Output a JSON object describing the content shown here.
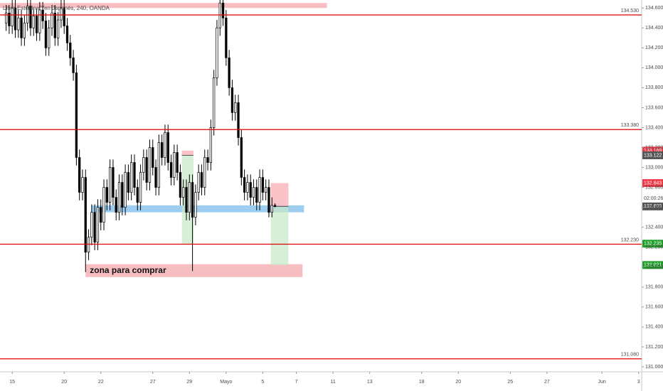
{
  "chart_data": {
    "type": "candlestick",
    "title": "Libra Esterlina/Yen Japonés, 240, OANDA",
    "countdown": "02:00:26",
    "up_color": "#ffffff",
    "down_color": "#000000",
    "x": [
      0,
      1,
      2,
      3,
      4,
      5,
      6,
      7,
      8,
      9,
      10,
      11,
      12,
      13,
      14,
      15,
      16,
      17,
      18,
      19,
      20,
      21,
      22,
      23,
      24,
      25,
      26,
      27,
      28,
      29,
      30,
      31,
      32,
      33,
      34,
      35,
      36,
      37,
      38,
      39,
      40,
      41,
      42,
      43,
      44,
      45,
      46,
      47,
      48,
      49,
      50,
      51,
      52,
      53,
      54,
      55,
      56,
      57,
      58,
      59,
      60,
      61,
      62,
      63,
      64,
      65,
      66,
      67,
      68,
      69,
      70,
      71,
      72,
      73,
      74,
      75,
      76,
      77,
      78,
      79,
      80,
      81,
      82,
      83,
      84,
      85,
      86,
      87,
      88
    ],
    "open": [
      134.45,
      134.55,
      134.42,
      134.6,
      134.38,
      134.5,
      134.3,
      134.45,
      134.62,
      134.4,
      134.52,
      134.35,
      134.58,
      134.47,
      134.2,
      134.4,
      134.55,
      134.3,
      134.48,
      134.6,
      134.42,
      134.25,
      134.1,
      133.95,
      133.1,
      132.75,
      132.9,
      132.15,
      132.3,
      132.55,
      132.25,
      132.6,
      132.45,
      132.8,
      132.65,
      133,
      132.7,
      132.55,
      132.85,
      132.6,
      132.95,
      132.75,
      133.05,
      132.8,
      132.65,
      132.95,
      133.1,
      132.85,
      133.2,
      133,
      132.8,
      133.25,
      133.1,
      133.35,
      133.05,
      132.9,
      133.15,
      132.95,
      132.7,
      132.8,
      132.55,
      132.85,
      132.5,
      132.75,
      132.95,
      132.8,
      133.1,
      133.05,
      133.4,
      133.9,
      134.4,
      134.65,
      134.5,
      134.1,
      133.8,
      133.55,
      133.65,
      133.3,
      132.9,
      132.75,
      132.85,
      132.7,
      132.8,
      132.65,
      132.9,
      132.75,
      132.8,
      132.55,
      132.62
    ],
    "high": [
      134.63,
      134.63,
      134.68,
      134.68,
      134.58,
      134.58,
      134.53,
      134.7,
      134.7,
      134.6,
      134.6,
      134.66,
      134.66,
      134.55,
      134.48,
      134.63,
      134.63,
      134.56,
      134.68,
      134.68,
      134.5,
      134.33,
      134.18,
      134.03,
      133.18,
      132.98,
      132.98,
      132.38,
      132.63,
      132.63,
      132.68,
      132.68,
      132.88,
      132.88,
      133.08,
      133.08,
      132.78,
      132.93,
      132.93,
      133.03,
      133.03,
      133.13,
      133.13,
      132.88,
      133.03,
      133.18,
      133.18,
      133.28,
      133.28,
      133.08,
      133.33,
      133.33,
      133.43,
      133.43,
      133.13,
      133.23,
      133.23,
      133.03,
      132.88,
      132.88,
      132.93,
      132.93,
      132.83,
      133.03,
      133.03,
      133.18,
      133.18,
      133.48,
      133.98,
      134.48,
      134.72,
      134.73,
      134.58,
      134.18,
      133.88,
      133.73,
      133.73,
      133.38,
      132.98,
      132.93,
      132.93,
      132.88,
      132.88,
      132.98,
      132.98,
      132.88,
      132.88,
      132.7,
      132.64
    ],
    "low": [
      134.37,
      134.34,
      134.34,
      134.3,
      134.3,
      134.22,
      134.22,
      134.37,
      134.32,
      134.32,
      134.27,
      134.27,
      134.39,
      134.12,
      134.12,
      134.32,
      134.22,
      134.22,
      134.4,
      134.34,
      134.17,
      134.02,
      133.87,
      133.02,
      132.67,
      132.67,
      131.95,
      132.07,
      132.22,
      132.17,
      132.17,
      132.37,
      132.37,
      132.57,
      132.57,
      132.62,
      132.47,
      132.47,
      132.52,
      132.52,
      132.67,
      132.67,
      132.72,
      132.57,
      132.57,
      132.87,
      132.77,
      132.77,
      132.92,
      132.72,
      132.72,
      133.02,
      133.02,
      132.97,
      132.82,
      132.82,
      132.87,
      132.62,
      132.62,
      132.47,
      132.47,
      131.96,
      132.42,
      132.67,
      132.72,
      132.72,
      132.97,
      132.97,
      133.32,
      133.82,
      134.32,
      134.42,
      134.02,
      133.72,
      133.47,
      133.47,
      133.22,
      132.82,
      132.67,
      132.67,
      132.62,
      132.62,
      132.57,
      132.57,
      132.67,
      132.67,
      132.5,
      132.5,
      132.6
    ],
    "close": [
      134.55,
      134.42,
      134.6,
      134.38,
      134.5,
      134.3,
      134.45,
      134.62,
      134.4,
      134.52,
      134.35,
      134.58,
      134.47,
      134.2,
      134.4,
      134.55,
      134.3,
      134.48,
      134.6,
      134.42,
      134.25,
      134.1,
      133.95,
      133.1,
      132.75,
      132.9,
      132.15,
      132.3,
      132.55,
      132.25,
      132.6,
      132.45,
      132.8,
      132.65,
      133,
      132.7,
      132.55,
      132.85,
      132.6,
      132.95,
      132.75,
      133.05,
      132.8,
      132.65,
      132.95,
      133.1,
      132.85,
      133.2,
      133,
      132.8,
      133.25,
      133.1,
      133.35,
      133.05,
      132.9,
      133.15,
      132.95,
      132.7,
      132.8,
      132.55,
      132.85,
      132.5,
      132.75,
      132.95,
      132.8,
      133.1,
      133.05,
      133.4,
      133.9,
      134.4,
      134.65,
      134.5,
      134.1,
      133.8,
      133.55,
      133.65,
      133.3,
      132.9,
      132.75,
      132.85,
      132.7,
      132.8,
      132.65,
      132.9,
      132.75,
      132.8,
      132.55,
      132.62,
      132.609
    ],
    "xlim": [
      -2,
      208
    ],
    "ylim": [
      130.95,
      134.68
    ],
    "xticks": [
      {
        "value": 2,
        "label": "15"
      },
      {
        "value": 19,
        "label": "20"
      },
      {
        "value": 31,
        "label": "22"
      },
      {
        "value": 48,
        "label": "27"
      },
      {
        "value": 60,
        "label": "29"
      },
      {
        "value": 72,
        "label": "Mayo"
      },
      {
        "value": 84,
        "label": "5"
      },
      {
        "value": 95,
        "label": "7"
      },
      {
        "value": 107,
        "label": "11"
      },
      {
        "value": 119,
        "label": "13"
      },
      {
        "value": 136,
        "label": "18"
      },
      {
        "value": 148,
        "label": "20"
      },
      {
        "value": 165,
        "label": "25"
      },
      {
        "value": 177,
        "label": "27"
      },
      {
        "value": 195,
        "label": "Jun"
      },
      {
        "value": 207,
        "label": "3"
      }
    ],
    "yticks": [
      {
        "value": 131,
        "label": "131.000"
      },
      {
        "value": 131.2,
        "label": "131.200"
      },
      {
        "value": 131.4,
        "label": "131.400"
      },
      {
        "value": 131.6,
        "label": "131.600"
      },
      {
        "value": 131.8,
        "label": "131.800"
      },
      {
        "value": 132,
        "label": "132.000"
      },
      {
        "value": 132.2,
        "label": "132.200"
      },
      {
        "value": 132.4,
        "label": "132.400"
      },
      {
        "value": 132.6,
        "label": "132.600"
      },
      {
        "value": 132.8,
        "label": "132.800"
      },
      {
        "value": 133,
        "label": "133.000"
      },
      {
        "value": 133.2,
        "label": "133.200"
      },
      {
        "value": 133.4,
        "label": "133.400"
      },
      {
        "value": 133.6,
        "label": "133.600"
      },
      {
        "value": 133.8,
        "label": "133.800"
      },
      {
        "value": 134,
        "label": "134.000"
      },
      {
        "value": 134.2,
        "label": "134.200"
      },
      {
        "value": 134.4,
        "label": "134.400"
      },
      {
        "value": 134.6,
        "label": "134.600"
      }
    ],
    "hlines": [
      {
        "value": 134.53,
        "label": "134.530"
      },
      {
        "value": 133.38,
        "label": "133.380"
      },
      {
        "value": 132.23,
        "label": "132.230"
      },
      {
        "value": 131.08,
        "label": "131.080"
      }
    ],
    "line_color": "#e00000",
    "zones": [
      {
        "x0": -2,
        "x1": 105,
        "y0": 134.6,
        "y1": 134.65,
        "color": "#f6b3b7"
      },
      {
        "x0": 28,
        "x1": 97.5,
        "y0": 132.55,
        "y1": 132.62,
        "color": "#8cc4ee"
      },
      {
        "x0": 26,
        "x1": 97,
        "y0": 131.9,
        "y1": 132.03,
        "color": "#f6b3b7",
        "label": "zona para comprar"
      }
    ],
    "positions": [
      {
        "x0": 57.5,
        "x1": 61.3,
        "stop": 133.169,
        "entry": 133.122,
        "target": 132.235
      },
      {
        "x0": 86.6,
        "x1": 92.4,
        "stop": 132.843,
        "entry": 132.609,
        "target": 132.021
      }
    ]
  }
}
